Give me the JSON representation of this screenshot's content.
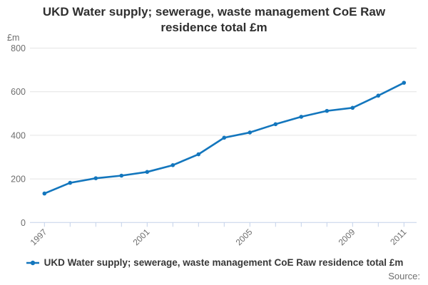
{
  "title": {
    "full": "UKD Water supply; sewerage, waste management CoE Raw residence total £m",
    "line1": "UKD Water supply; sewerage, waste management CoE Raw",
    "line2": "residence total £m"
  },
  "legend": {
    "label": "UKD Water supply; sewerage, waste management CoE Raw residence total £m"
  },
  "source": {
    "label": "Source:"
  },
  "colors": {
    "line": "#1376bd",
    "grid": "#e4e4e4",
    "axis": "#c3d1e9",
    "title_text": "#2f2f2f",
    "muted_text": "#6e6e6e"
  },
  "chart_data": {
    "type": "line",
    "title": "UKD Water supply; sewerage, waste management CoE Raw residence total £m",
    "unit_label": "£m",
    "xlabel": "",
    "ylabel": "£m",
    "ylim": [
      0,
      800
    ],
    "yticks": [
      0,
      200,
      400,
      600,
      800
    ],
    "grid": true,
    "legend_position": "bottom",
    "x": [
      1997,
      1998,
      1999,
      2000,
      2001,
      2002,
      2003,
      2004,
      2005,
      2006,
      2007,
      2008,
      2009,
      2010,
      2011
    ],
    "x_tick_labels": [
      "1997",
      "2001",
      "2005",
      "2009",
      "2011"
    ],
    "series": [
      {
        "name": "UKD Water supply; sewerage, waste management CoE Raw residence total £m",
        "color": "#1376bd",
        "values": [
          133,
          182,
          203,
          215,
          232,
          263,
          313,
          389,
          413,
          451,
          485,
          512,
          526,
          582,
          641
        ]
      }
    ]
  }
}
